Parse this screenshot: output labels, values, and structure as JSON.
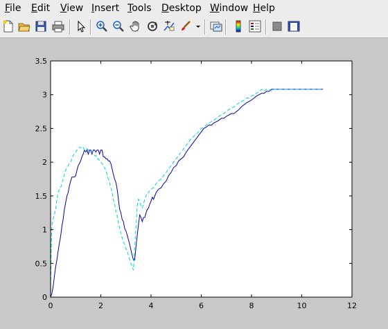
{
  "menu": [
    {
      "pre": "",
      "mn": "F",
      "post": "ile"
    },
    {
      "pre": "",
      "mn": "E",
      "post": "dit"
    },
    {
      "pre": "",
      "mn": "V",
      "post": "iew"
    },
    {
      "pre": "",
      "mn": "I",
      "post": "nsert"
    },
    {
      "pre": "",
      "mn": "T",
      "post": "ools"
    },
    {
      "pre": "",
      "mn": "D",
      "post": "esktop"
    },
    {
      "pre": "",
      "mn": "W",
      "post": "indow"
    },
    {
      "pre": "",
      "mn": "H",
      "post": "elp"
    }
  ],
  "toolbar_icons": [
    "new-file-icon",
    "open-folder-icon",
    "save-icon",
    "print-icon",
    "pointer-icon",
    "zoom-in-icon",
    "zoom-out-icon",
    "pan-hand-icon",
    "rotate-3d-icon",
    "data-cursor-icon",
    "brush-icon",
    "dropdown-arrow-icon",
    "link-plot-icon",
    "colorbar-icon",
    "legend-icon",
    "hide-plot-tools-icon",
    "show-plot-tools-icon"
  ],
  "chart_data": {
    "type": "line",
    "title": "",
    "xlabel": "",
    "ylabel": "",
    "xlim": [
      0,
      12
    ],
    "ylim": [
      0,
      3.5
    ],
    "xticks": [
      "0",
      "2",
      "4",
      "6",
      "8",
      "10",
      "12"
    ],
    "yticks": [
      "0",
      "0.5",
      "1",
      "1.5",
      "2",
      "2.5",
      "3",
      "3.5"
    ],
    "grid": false,
    "series": [
      {
        "color": "#0000aa",
        "style": "solid",
        "points": [
          [
            0.0,
            0.0
          ],
          [
            0.05,
            0.05
          ],
          [
            0.1,
            0.15
          ],
          [
            0.15,
            0.3
          ],
          [
            0.2,
            0.45
          ],
          [
            0.25,
            0.55
          ],
          [
            0.3,
            0.68
          ],
          [
            0.35,
            0.8
          ],
          [
            0.4,
            0.9
          ],
          [
            0.45,
            1.05
          ],
          [
            0.5,
            1.15
          ],
          [
            0.55,
            1.3
          ],
          [
            0.6,
            1.4
          ],
          [
            0.65,
            1.5
          ],
          [
            0.7,
            1.55
          ],
          [
            0.75,
            1.65
          ],
          [
            0.8,
            1.72
          ],
          [
            0.85,
            1.78
          ],
          [
            0.9,
            1.78
          ],
          [
            0.95,
            1.78
          ],
          [
            1.0,
            1.8
          ],
          [
            1.05,
            1.88
          ],
          [
            1.1,
            1.95
          ],
          [
            1.15,
            1.98
          ],
          [
            1.2,
            2.02
          ],
          [
            1.25,
            2.08
          ],
          [
            1.3,
            2.12
          ],
          [
            1.35,
            2.18
          ],
          [
            1.4,
            2.15
          ],
          [
            1.45,
            2.18
          ],
          [
            1.5,
            2.12
          ],
          [
            1.55,
            2.18
          ],
          [
            1.6,
            2.18
          ],
          [
            1.65,
            2.12
          ],
          [
            1.7,
            2.18
          ],
          [
            1.75,
            2.18
          ],
          [
            1.8,
            2.15
          ],
          [
            1.85,
            2.18
          ],
          [
            1.9,
            2.18
          ],
          [
            1.95,
            2.12
          ],
          [
            2.0,
            2.18
          ],
          [
            2.05,
            2.18
          ],
          [
            2.1,
            2.08
          ],
          [
            2.15,
            2.08
          ],
          [
            2.2,
            2.05
          ],
          [
            2.25,
            2.05
          ],
          [
            2.3,
            2.02
          ],
          [
            2.35,
            2.02
          ],
          [
            2.4,
            1.98
          ],
          [
            2.45,
            1.9
          ],
          [
            2.5,
            1.82
          ],
          [
            2.55,
            1.75
          ],
          [
            2.6,
            1.7
          ],
          [
            2.65,
            1.6
          ],
          [
            2.7,
            1.45
          ],
          [
            2.75,
            1.3
          ],
          [
            2.8,
            1.25
          ],
          [
            2.85,
            1.15
          ],
          [
            2.9,
            1.12
          ],
          [
            2.95,
            1.02
          ],
          [
            3.0,
            0.98
          ],
          [
            3.05,
            0.92
          ],
          [
            3.1,
            0.85
          ],
          [
            3.15,
            0.78
          ],
          [
            3.2,
            0.7
          ],
          [
            3.25,
            0.62
          ],
          [
            3.3,
            0.55
          ],
          [
            3.35,
            0.55
          ],
          [
            3.4,
            0.75
          ],
          [
            3.45,
            0.92
          ],
          [
            3.5,
            1.08
          ],
          [
            3.55,
            1.22
          ],
          [
            3.6,
            1.18
          ],
          [
            3.65,
            1.12
          ],
          [
            3.7,
            1.18
          ],
          [
            3.75,
            1.18
          ],
          [
            3.8,
            1.25
          ],
          [
            3.85,
            1.3
          ],
          [
            3.9,
            1.32
          ],
          [
            3.95,
            1.38
          ],
          [
            4.0,
            1.42
          ],
          [
            4.05,
            1.48
          ],
          [
            4.1,
            1.45
          ],
          [
            4.15,
            1.5
          ],
          [
            4.2,
            1.55
          ],
          [
            4.3,
            1.6
          ],
          [
            4.4,
            1.62
          ],
          [
            4.5,
            1.68
          ],
          [
            4.6,
            1.72
          ],
          [
            4.7,
            1.8
          ],
          [
            4.8,
            1.85
          ],
          [
            4.9,
            1.92
          ],
          [
            5.0,
            1.95
          ],
          [
            5.1,
            2.02
          ],
          [
            5.2,
            2.05
          ],
          [
            5.3,
            2.08
          ],
          [
            5.4,
            2.15
          ],
          [
            5.5,
            2.2
          ],
          [
            5.6,
            2.25
          ],
          [
            5.7,
            2.3
          ],
          [
            5.8,
            2.35
          ],
          [
            5.9,
            2.4
          ],
          [
            6.0,
            2.45
          ],
          [
            6.1,
            2.5
          ],
          [
            6.2,
            2.52
          ],
          [
            6.3,
            2.55
          ],
          [
            6.4,
            2.55
          ],
          [
            6.5,
            2.58
          ],
          [
            6.6,
            2.6
          ],
          [
            6.7,
            2.62
          ],
          [
            6.8,
            2.65
          ],
          [
            6.9,
            2.65
          ],
          [
            7.0,
            2.68
          ],
          [
            7.1,
            2.7
          ],
          [
            7.2,
            2.72
          ],
          [
            7.3,
            2.72
          ],
          [
            7.4,
            2.75
          ],
          [
            7.5,
            2.78
          ],
          [
            7.6,
            2.82
          ],
          [
            7.7,
            2.85
          ],
          [
            7.8,
            2.88
          ],
          [
            7.9,
            2.9
          ],
          [
            8.0,
            2.92
          ],
          [
            8.1,
            2.95
          ],
          [
            8.2,
            2.98
          ],
          [
            8.3,
            3.0
          ],
          [
            8.4,
            3.02
          ],
          [
            8.5,
            3.02
          ],
          [
            8.6,
            3.05
          ],
          [
            8.7,
            3.05
          ],
          [
            8.8,
            3.08
          ],
          [
            8.9,
            3.08
          ],
          [
            9.0,
            3.08
          ],
          [
            9.2,
            3.08
          ],
          [
            9.4,
            3.08
          ],
          [
            9.6,
            3.08
          ],
          [
            9.8,
            3.08
          ],
          [
            10.0,
            3.08
          ],
          [
            10.2,
            3.08
          ],
          [
            10.4,
            3.08
          ],
          [
            10.6,
            3.08
          ],
          [
            10.85,
            3.08
          ]
        ]
      },
      {
        "color": "#00d0e8",
        "style": "dashed",
        "points": [
          [
            0.0,
            0.0
          ],
          [
            0.02,
            0.6
          ],
          [
            0.05,
            1.05
          ],
          [
            0.1,
            1.15
          ],
          [
            0.15,
            1.22
          ],
          [
            0.2,
            1.3
          ],
          [
            0.25,
            1.45
          ],
          [
            0.3,
            1.55
          ],
          [
            0.35,
            1.6
          ],
          [
            0.4,
            1.62
          ],
          [
            0.45,
            1.68
          ],
          [
            0.5,
            1.75
          ],
          [
            0.55,
            1.82
          ],
          [
            0.6,
            1.88
          ],
          [
            0.65,
            1.92
          ],
          [
            0.7,
            1.95
          ],
          [
            0.75,
            1.98
          ],
          [
            0.8,
            2.0
          ],
          [
            0.85,
            2.05
          ],
          [
            0.9,
            2.1
          ],
          [
            0.95,
            2.12
          ],
          [
            1.0,
            2.15
          ],
          [
            1.05,
            2.18
          ],
          [
            1.1,
            2.2
          ],
          [
            1.15,
            2.22
          ],
          [
            1.2,
            2.22
          ],
          [
            1.25,
            2.2
          ],
          [
            1.3,
            2.22
          ],
          [
            1.35,
            2.18
          ],
          [
            1.4,
            2.2
          ],
          [
            1.45,
            2.2
          ],
          [
            1.5,
            2.18
          ],
          [
            1.55,
            2.18
          ],
          [
            1.6,
            2.15
          ],
          [
            1.65,
            2.15
          ],
          [
            1.7,
            2.12
          ],
          [
            1.75,
            2.1
          ],
          [
            1.8,
            2.1
          ],
          [
            1.85,
            2.05
          ],
          [
            1.9,
            2.05
          ],
          [
            1.95,
            2.02
          ],
          [
            2.0,
            2.0
          ],
          [
            2.05,
            1.98
          ],
          [
            2.1,
            1.95
          ],
          [
            2.15,
            1.92
          ],
          [
            2.2,
            1.88
          ],
          [
            2.25,
            1.82
          ],
          [
            2.3,
            1.75
          ],
          [
            2.35,
            1.7
          ],
          [
            2.4,
            1.62
          ],
          [
            2.45,
            1.55
          ],
          [
            2.5,
            1.45
          ],
          [
            2.55,
            1.38
          ],
          [
            2.6,
            1.28
          ],
          [
            2.65,
            1.2
          ],
          [
            2.7,
            1.1
          ],
          [
            2.75,
            1.02
          ],
          [
            2.8,
            0.95
          ],
          [
            2.85,
            0.88
          ],
          [
            2.9,
            0.82
          ],
          [
            2.95,
            0.78
          ],
          [
            3.0,
            0.72
          ],
          [
            3.05,
            0.68
          ],
          [
            3.1,
            0.62
          ],
          [
            3.15,
            0.55
          ],
          [
            3.2,
            0.5
          ],
          [
            3.25,
            0.45
          ],
          [
            3.3,
            0.4
          ],
          [
            3.35,
            0.75
          ],
          [
            3.4,
            1.05
          ],
          [
            3.45,
            1.35
          ],
          [
            3.5,
            1.45
          ],
          [
            3.55,
            1.42
          ],
          [
            3.6,
            1.35
          ],
          [
            3.65,
            1.32
          ],
          [
            3.7,
            1.38
          ],
          [
            3.75,
            1.45
          ],
          [
            3.8,
            1.5
          ],
          [
            3.85,
            1.55
          ],
          [
            3.9,
            1.55
          ],
          [
            3.95,
            1.58
          ],
          [
            4.0,
            1.6
          ],
          [
            4.1,
            1.62
          ],
          [
            4.2,
            1.68
          ],
          [
            4.3,
            1.72
          ],
          [
            4.4,
            1.75
          ],
          [
            4.5,
            1.8
          ],
          [
            4.6,
            1.85
          ],
          [
            4.7,
            1.9
          ],
          [
            4.8,
            1.95
          ],
          [
            4.9,
            2.0
          ],
          [
            5.0,
            2.05
          ],
          [
            5.1,
            2.1
          ],
          [
            5.2,
            2.15
          ],
          [
            5.3,
            2.2
          ],
          [
            5.4,
            2.25
          ],
          [
            5.5,
            2.3
          ],
          [
            5.6,
            2.35
          ],
          [
            5.7,
            2.38
          ],
          [
            5.8,
            2.42
          ],
          [
            5.9,
            2.45
          ],
          [
            6.0,
            2.5
          ],
          [
            6.1,
            2.52
          ],
          [
            6.2,
            2.55
          ],
          [
            6.3,
            2.58
          ],
          [
            6.4,
            2.6
          ],
          [
            6.5,
            2.62
          ],
          [
            6.6,
            2.65
          ],
          [
            6.7,
            2.68
          ],
          [
            6.8,
            2.7
          ],
          [
            6.9,
            2.72
          ],
          [
            7.0,
            2.75
          ],
          [
            7.1,
            2.78
          ],
          [
            7.2,
            2.8
          ],
          [
            7.3,
            2.82
          ],
          [
            7.4,
            2.85
          ],
          [
            7.5,
            2.88
          ],
          [
            7.6,
            2.9
          ],
          [
            7.7,
            2.92
          ],
          [
            7.8,
            2.95
          ],
          [
            7.9,
            2.95
          ],
          [
            8.0,
            2.98
          ],
          [
            8.1,
            3.0
          ],
          [
            8.2,
            3.02
          ],
          [
            8.3,
            3.05
          ],
          [
            8.4,
            3.08
          ],
          [
            8.5,
            3.05
          ],
          [
            8.6,
            3.08
          ],
          [
            8.7,
            3.08
          ],
          [
            8.8,
            3.05
          ],
          [
            8.9,
            3.08
          ],
          [
            9.0,
            3.08
          ],
          [
            9.2,
            3.08
          ],
          [
            9.4,
            3.08
          ],
          [
            9.6,
            3.08
          ],
          [
            9.8,
            3.08
          ],
          [
            10.0,
            3.08
          ],
          [
            10.2,
            3.08
          ],
          [
            10.4,
            3.08
          ],
          [
            10.6,
            3.08
          ],
          [
            10.85,
            3.08
          ]
        ]
      }
    ]
  }
}
